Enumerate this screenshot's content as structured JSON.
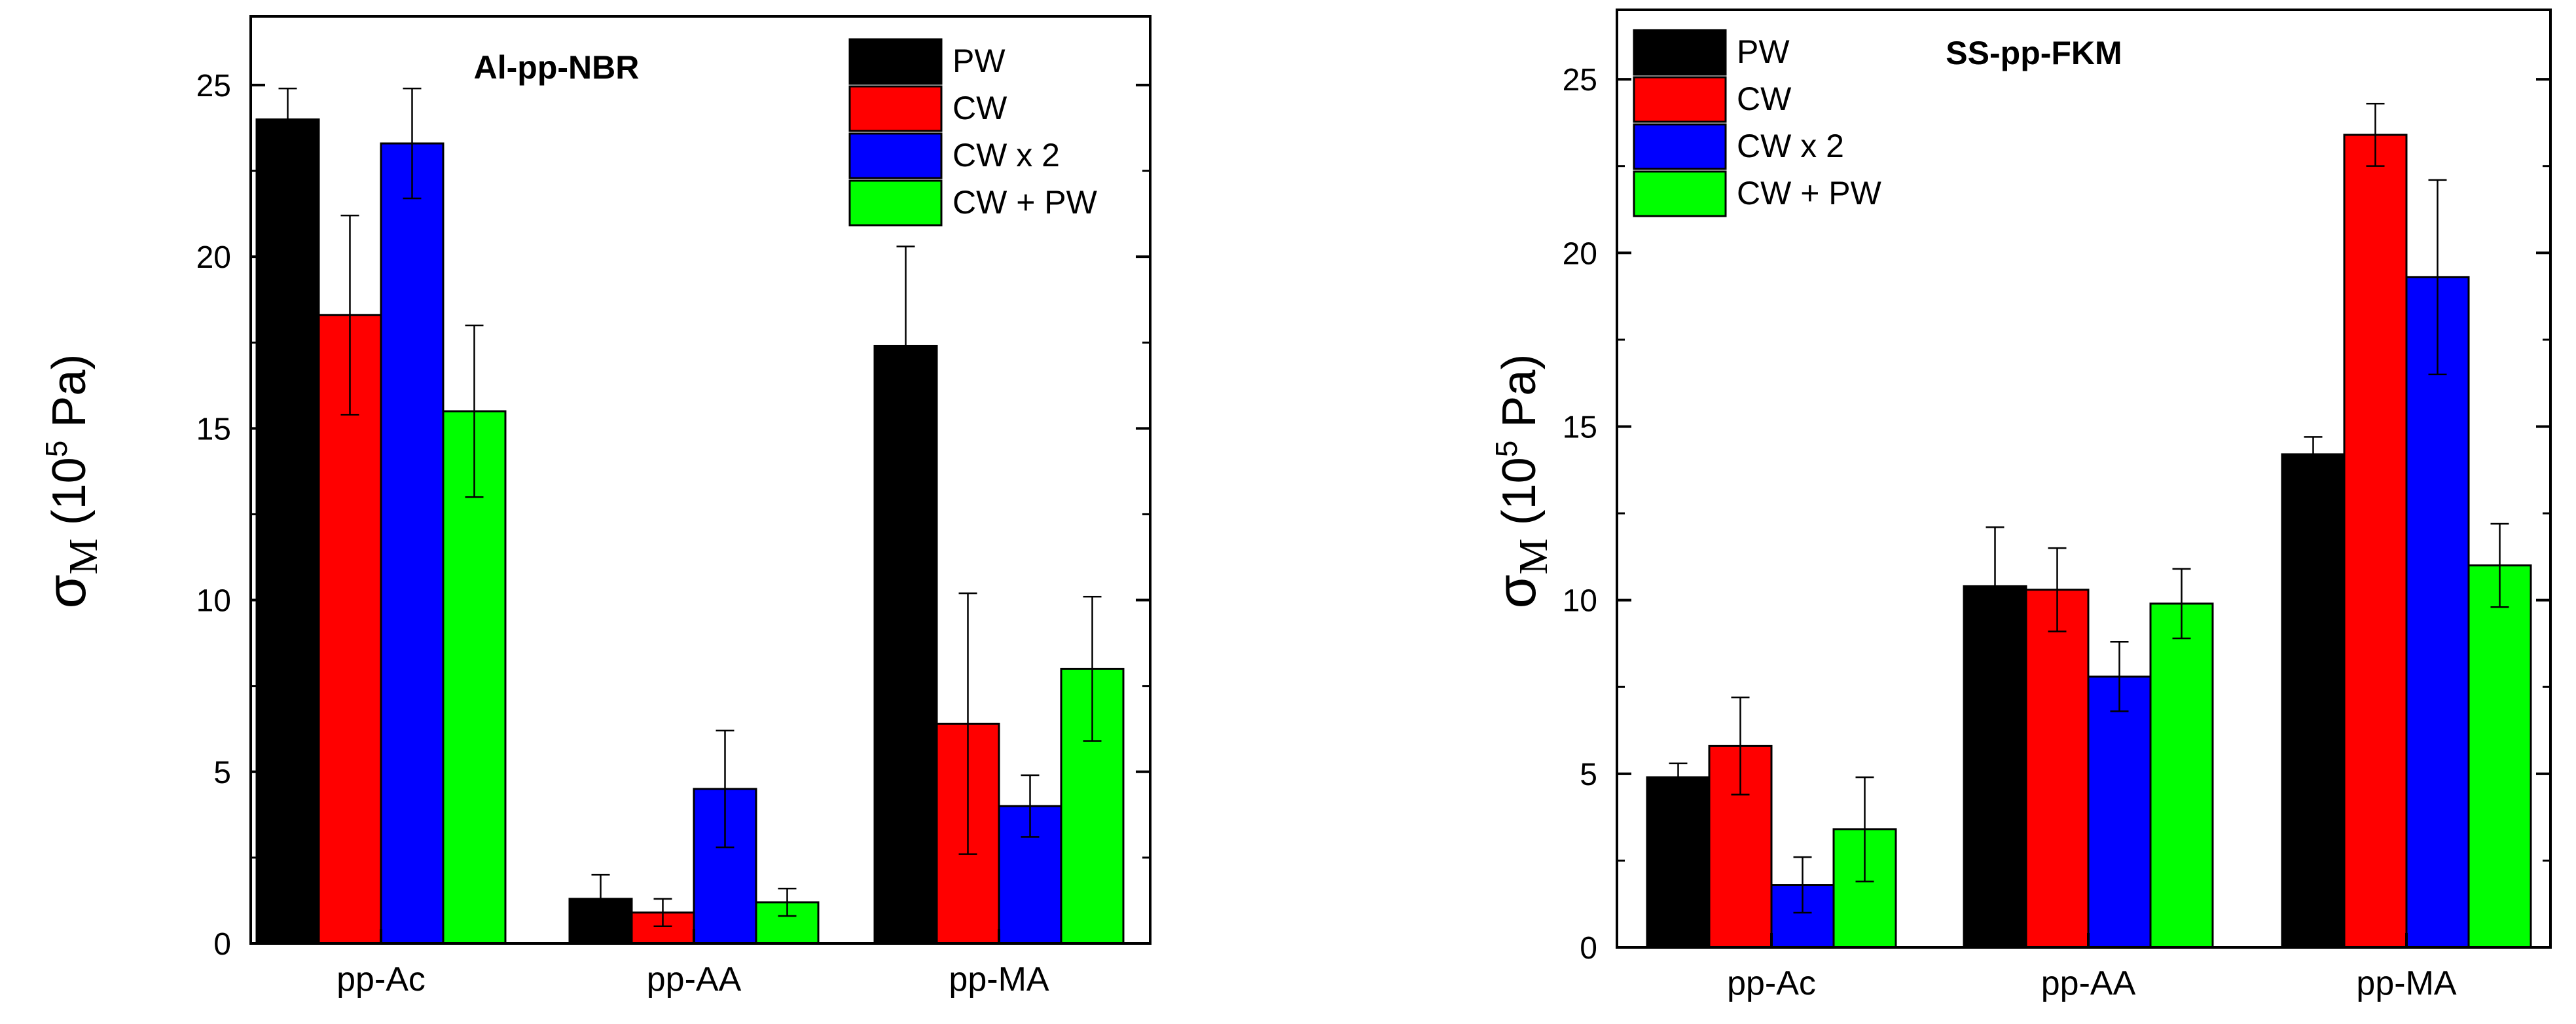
{
  "chart_data": [
    {
      "type": "bar",
      "title": "Al-pp-NBR",
      "categories": [
        "pp-Ac",
        "pp-AA",
        "pp-MA"
      ],
      "ylabel": "σ",
      "ylabel_sub": "M",
      "ylabel_unit_base": "(10",
      "ylabel_unit_exp": "5",
      "ylabel_unit_end": " Pa)",
      "ylim": [
        0,
        27
      ],
      "yticks": [
        0,
        5,
        10,
        15,
        20,
        25
      ],
      "legend_position": "top-right",
      "series": [
        {
          "name": "PW",
          "color": "#000000",
          "values": [
            24.0,
            1.3,
            17.4
          ],
          "errors": [
            0.9,
            0.7,
            2.9
          ]
        },
        {
          "name": "CW",
          "color": "#ff0000",
          "values": [
            18.3,
            0.9,
            6.4
          ],
          "errors": [
            2.9,
            0.4,
            3.8
          ]
        },
        {
          "name": "CW x 2",
          "color": "#0000ff",
          "values": [
            23.3,
            4.5,
            4.0
          ],
          "errors": [
            1.6,
            1.7,
            0.9
          ]
        },
        {
          "name": "CW + PW",
          "color": "#00ff00",
          "values": [
            15.5,
            1.2,
            8.0
          ],
          "errors": [
            2.5,
            0.4,
            2.1
          ]
        }
      ]
    },
    {
      "type": "bar",
      "title": "SS-pp-FKM",
      "categories": [
        "pp-Ac",
        "pp-AA",
        "pp-MA"
      ],
      "ylabel": "σ",
      "ylabel_sub": "M",
      "ylabel_unit_base": "(10",
      "ylabel_unit_exp": "5",
      "ylabel_unit_end": " Pa)",
      "ylim": [
        0,
        27
      ],
      "yticks": [
        0,
        5,
        10,
        15,
        20,
        25
      ],
      "legend_position": "top-left",
      "series": [
        {
          "name": "PW",
          "color": "#000000",
          "values": [
            4.9,
            10.4,
            14.2
          ],
          "errors": [
            0.4,
            1.7,
            0.5
          ]
        },
        {
          "name": "CW",
          "color": "#ff0000",
          "values": [
            5.8,
            10.3,
            23.4
          ],
          "errors": [
            1.4,
            1.2,
            0.9
          ]
        },
        {
          "name": "CW x 2",
          "color": "#0000ff",
          "values": [
            1.8,
            7.8,
            19.3
          ],
          "errors": [
            0.8,
            1.0,
            2.8
          ]
        },
        {
          "name": "CW + PW",
          "color": "#00ff00",
          "values": [
            3.4,
            9.9,
            11.0
          ],
          "errors": [
            1.5,
            1.0,
            1.2
          ]
        }
      ]
    }
  ]
}
